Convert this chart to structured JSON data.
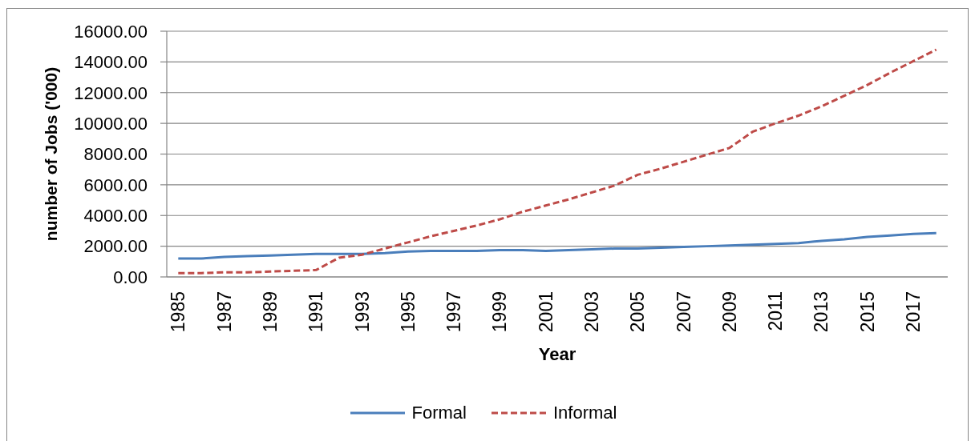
{
  "chart_data": {
    "type": "line",
    "xlabel": "Year",
    "ylabel": "number of Jobs ('000)",
    "categories": [
      "1985",
      null,
      "1987",
      null,
      "1989",
      null,
      "1991",
      null,
      "1993",
      null,
      "1995",
      null,
      "1997",
      null,
      "1999",
      null,
      "2001",
      null,
      "2003",
      null,
      "2005",
      null,
      "2007",
      null,
      "2009",
      null,
      "2011",
      null,
      "2013",
      null,
      "2015",
      null,
      "2017",
      null
    ],
    "series": [
      {
        "name": "Formal",
        "color": "#4a7ebb",
        "line_style": "solid",
        "values": [
          1200,
          1200,
          1300,
          1350,
          1400,
          1450,
          1500,
          1500,
          1500,
          1550,
          1650,
          1700,
          1700,
          1700,
          1750,
          1750,
          1700,
          1750,
          1800,
          1850,
          1850,
          1900,
          1950,
          2000,
          2050,
          2100,
          2150,
          2200,
          2350,
          2450,
          2600,
          2700,
          2800,
          2850
        ]
      },
      {
        "name": "Informal",
        "color": "#be4b48",
        "line_style": "dashed",
        "values": [
          250,
          250,
          300,
          300,
          350,
          400,
          450,
          1250,
          1450,
          1850,
          2250,
          2650,
          3000,
          3350,
          3750,
          4250,
          4650,
          5050,
          5500,
          5950,
          6650,
          7050,
          7500,
          7950,
          8400,
          9450,
          10000,
          10500,
          11100,
          11800,
          12500,
          13300,
          14050,
          14800
        ]
      }
    ],
    "ylim": [
      0,
      16000
    ],
    "yticks": [
      {
        "value": 0,
        "label": "0.00"
      },
      {
        "value": 2000,
        "label": "2000.00"
      },
      {
        "value": 4000,
        "label": "4000.00"
      },
      {
        "value": 6000,
        "label": "6000.00"
      },
      {
        "value": 8000,
        "label": "8000.00"
      },
      {
        "value": 10000,
        "label": "10000.00"
      },
      {
        "value": 12000,
        "label": "12000.00"
      },
      {
        "value": 14000,
        "label": "14000.00"
      },
      {
        "value": 16000,
        "label": "16000.00"
      }
    ],
    "grid": "y",
    "legend": "bottom",
    "marker": "none"
  }
}
